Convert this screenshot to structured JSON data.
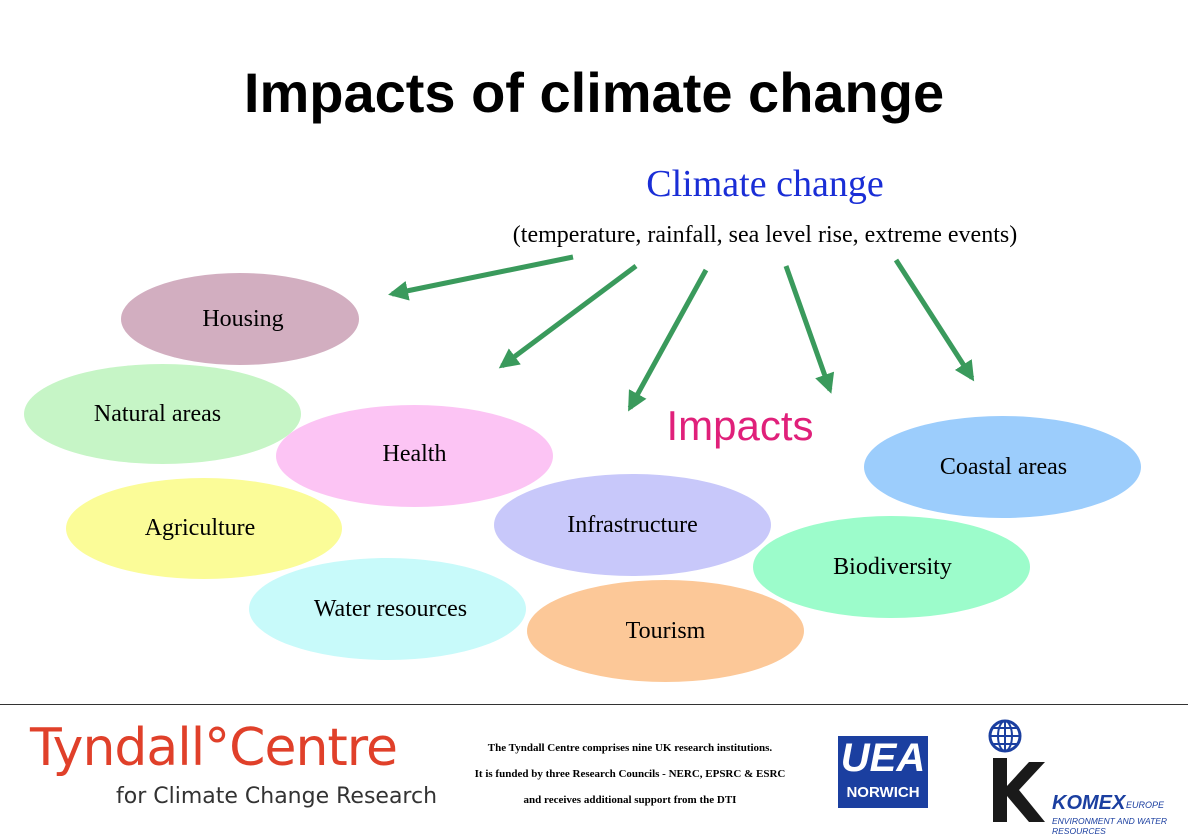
{
  "slide": {
    "title": "Impacts of climate change"
  },
  "diagram": {
    "source_heading": "Climate change",
    "source_subtext": "(temperature, rainfall, sea level rise, extreme events)",
    "impacts_label": "Impacts",
    "arrow_color": "#3a9a5c",
    "impact_areas": [
      {
        "label": "Housing",
        "color": "#d2aec0"
      },
      {
        "label": "Natural areas",
        "color": "#c6f5c6"
      },
      {
        "label": "Health",
        "color": "#fcc4f4"
      },
      {
        "label": "Agriculture",
        "color": "#fbfc98"
      },
      {
        "label": "Water resources",
        "color": "#c8fafa"
      },
      {
        "label": "Infrastructure",
        "color": "#c8c8fa"
      },
      {
        "label": "Tourism",
        "color": "#fcc898"
      },
      {
        "label": "Biodiversity",
        "color": "#9cfccb"
      },
      {
        "label": "Coastal areas",
        "color": "#9ccdfc"
      }
    ]
  },
  "footer": {
    "tyndall_logo": {
      "main": "Tyndall°Centre",
      "sub": "for Climate Change Research",
      "color": "#e0402a"
    },
    "note_lines": [
      "The Tyndall Centre comprises nine UK research institutions.",
      "It is funded by three Research Councils - NERC, EPSRC & ESRC",
      "and receives additional support from the DTI"
    ],
    "uea_logo": {
      "main": "UEA",
      "sub": "NORWICH",
      "color": "#1b3fa0"
    },
    "komex_logo": {
      "name": "KOMEX",
      "region": "EUROPE",
      "tagline": "ENVIRONMENT AND WATER RESOURCES",
      "color": "#1b3fa0"
    }
  }
}
